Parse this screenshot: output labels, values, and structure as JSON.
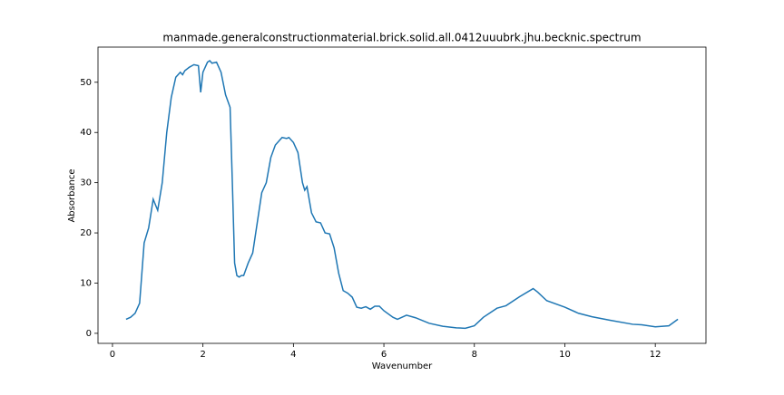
{
  "chart_data": {
    "type": "line",
    "title": "manmade.generalconstructionmaterial.brick.solid.all.0412uuubrk.jhu.becknic.spectrum",
    "xlabel": "Wavenumber",
    "ylabel": "Absorbance",
    "color": "#1f77b4",
    "x": [
      0.3,
      0.4,
      0.5,
      0.6,
      0.65,
      0.7,
      0.8,
      0.9,
      1.0,
      1.1,
      1.2,
      1.3,
      1.4,
      1.5,
      1.55,
      1.6,
      1.7,
      1.8,
      1.9,
      1.95,
      2.0,
      2.1,
      2.15,
      2.2,
      2.3,
      2.4,
      2.5,
      2.6,
      2.65,
      2.7,
      2.75,
      2.8,
      2.85,
      2.9,
      3.0,
      3.1,
      3.2,
      3.3,
      3.4,
      3.5,
      3.6,
      3.7,
      3.75,
      3.85,
      3.9,
      4.0,
      4.1,
      4.2,
      4.25,
      4.3,
      4.4,
      4.5,
      4.6,
      4.7,
      4.8,
      4.9,
      5.0,
      5.1,
      5.2,
      5.3,
      5.4,
      5.5,
      5.6,
      5.7,
      5.8,
      5.9,
      6.0,
      6.2,
      6.3,
      6.5,
      6.7,
      7.0,
      7.3,
      7.6,
      7.8,
      8.0,
      8.2,
      8.5,
      8.7,
      9.0,
      9.3,
      9.4,
      9.6,
      10.0,
      10.3,
      10.6,
      11.0,
      11.5,
      11.7,
      12.0,
      12.3,
      12.5
    ],
    "values": [
      2.8,
      3.2,
      4,
      6,
      12,
      18,
      21,
      26.7,
      24.5,
      30,
      40,
      47,
      51,
      52,
      51.5,
      52.3,
      53,
      53.5,
      53.3,
      48,
      52,
      54,
      54.3,
      53.8,
      54,
      52,
      47.5,
      45,
      30,
      14,
      11.5,
      11.2,
      11.5,
      11.5,
      14,
      16,
      22,
      28,
      30,
      35,
      37.5,
      38.5,
      39,
      38.8,
      39,
      38,
      36,
      30,
      28.5,
      29.2,
      24,
      22.2,
      22,
      20,
      19.8,
      17,
      12,
      8.5,
      8,
      7.2,
      5.2,
      5,
      5.3,
      4.8,
      5.4,
      5.4,
      4.5,
      3.2,
      2.8,
      3.6,
      3.1,
      2,
      1.4,
      1.1,
      1,
      1.5,
      3.2,
      5,
      5.5,
      7.3,
      8.9,
      8.2,
      6.5,
      5.2,
      4,
      3.3,
      2.6,
      1.8,
      1.7,
      1.3,
      1.5,
      2.8
    ],
    "xlim": [
      -0.32,
      13.12
    ],
    "ylim": [
      -2,
      57
    ],
    "xticks": [
      0,
      2,
      4,
      6,
      8,
      10,
      12
    ],
    "yticks": [
      0,
      10,
      20,
      30,
      40,
      50
    ]
  }
}
